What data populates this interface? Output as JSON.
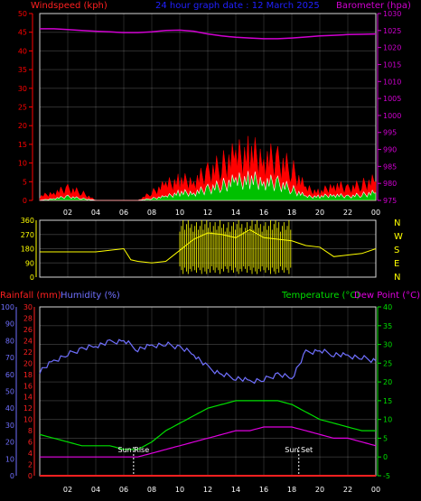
{
  "colors": {
    "wind": "#ff0000",
    "gust_fill": "#00c000",
    "gust_line": "#ffffff",
    "baro": "#d000d0",
    "dir": "#ffff00",
    "rain": "#ff2020",
    "humidity": "#7070ff",
    "temperature": "#00e000",
    "dewpoint": "#e000e0",
    "grid": "#ffffff",
    "frame": "#d0d0d0",
    "title": "#2020ff",
    "sunline": "#ffffff"
  },
  "x_ticks": [
    "02",
    "04",
    "06",
    "08",
    "10",
    "12",
    "14",
    "16",
    "18",
    "20",
    "22",
    "00"
  ],
  "chart_data": [
    {
      "type": "area",
      "id": "wind",
      "title": "24 hour graph date : 12 March 2025",
      "y_left_label": "Windspeed (kph)",
      "y_right_label": "Barometer (hpa)",
      "y_left_ticks": [
        "0",
        "5",
        "10",
        "15",
        "20",
        "25",
        "30",
        "35",
        "40",
        "45",
        "50"
      ],
      "y_right_ticks": [
        "975",
        "980",
        "985",
        "990",
        "995",
        "1000",
        "1005",
        "1010",
        "1015",
        "1020",
        "1025",
        "1030"
      ],
      "ylim_left": [
        0,
        50
      ],
      "ylim_right": [
        975,
        1030
      ],
      "x": [
        0,
        1,
        2,
        3,
        4,
        5,
        6,
        7,
        8,
        9,
        10,
        11,
        12,
        13,
        14,
        15,
        16,
        17,
        18,
        19,
        20,
        21,
        22,
        23,
        24
      ],
      "series": [
        {
          "values": [
            1,
            2,
            3,
            2,
            0,
            0,
            0,
            0,
            2,
            4,
            5,
            5,
            7,
            9,
            11,
            12,
            11,
            10,
            8,
            3,
            2,
            4,
            3,
            4,
            5
          ]
        },
        {
          "values": [
            0,
            0.5,
            1,
            0.5,
            0,
            0,
            0,
            0,
            0.5,
            1,
            2,
            2,
            3,
            4,
            5,
            5.5,
            5,
            4.5,
            3,
            1,
            1,
            1.5,
            1,
            1.5,
            2
          ]
        },
        {
          "values": [
            1025.5,
            1025.5,
            1025.3,
            1025,
            1024.8,
            1024.6,
            1024.4,
            1024.4,
            1024.6,
            1025,
            1025.1,
            1024.8,
            1024,
            1023.4,
            1023,
            1022.8,
            1022.6,
            1022.6,
            1022.8,
            1023.1,
            1023.4,
            1023.6,
            1023.8,
            1023.9,
            1024
          ]
        }
      ]
    },
    {
      "type": "line",
      "id": "direction",
      "y_left_ticks": [
        "0",
        "90",
        "180",
        "270",
        "360"
      ],
      "y_right_ticks": [
        "N",
        "E",
        "S",
        "W",
        "N"
      ],
      "ylim": [
        0,
        360
      ],
      "x": [
        0,
        1,
        2,
        3,
        4,
        5,
        6,
        6.5,
        7,
        8,
        9,
        10,
        11,
        12,
        13,
        14,
        15,
        16,
        17,
        18,
        19,
        20,
        21,
        22,
        23,
        24
      ],
      "values": [
        160,
        160,
        160,
        160,
        160,
        170,
        180,
        110,
        100,
        90,
        100,
        170,
        240,
        280,
        270,
        250,
        300,
        250,
        240,
        230,
        200,
        190,
        130,
        140,
        150,
        180
      ]
    },
    {
      "type": "line",
      "id": "temp",
      "y_left_labels": {
        "rainfall": "Rainfall (mm)",
        "humidity": "Humidity (%)"
      },
      "y_right_labels": {
        "temperature": "Temperature (°C)",
        "dewpoint": "Dew Point (°C)"
      },
      "rain_ticks": [
        "0",
        "2",
        "4",
        "6",
        "8",
        "10",
        "12",
        "14",
        "16",
        "18",
        "20",
        "22",
        "24",
        "26",
        "28",
        "30"
      ],
      "humidity_ticks": [
        "0",
        "10",
        "20",
        "30",
        "40",
        "50",
        "60",
        "70",
        "80",
        "90",
        "100"
      ],
      "temp_ticks": [
        "-5",
        "0",
        "5",
        "10",
        "15",
        "20",
        "25",
        "30",
        "35",
        "40"
      ],
      "ylim_temp": [
        -5,
        40
      ],
      "ylim_humidity": [
        0,
        100
      ],
      "x": [
        0,
        1,
        2,
        3,
        4,
        5,
        6,
        7,
        8,
        9,
        10,
        11,
        12,
        13,
        14,
        15,
        16,
        17,
        18,
        19,
        20,
        21,
        22,
        23,
        24
      ],
      "series": [
        {
          "name": "Humidity",
          "values": [
            62,
            68,
            72,
            75,
            77,
            79,
            80,
            75,
            77,
            78,
            76,
            72,
            64,
            60,
            58,
            56,
            57,
            60,
            58,
            73,
            74,
            72,
            71,
            70,
            68
          ]
        },
        {
          "name": "Temperature",
          "values": [
            6,
            5,
            4,
            3,
            3,
            3,
            2,
            2,
            4,
            7,
            9,
            11,
            13,
            14,
            15,
            15,
            15,
            15,
            14,
            12,
            10,
            9,
            8,
            7,
            7
          ]
        },
        {
          "name": "Dew Point",
          "values": [
            0,
            0,
            0,
            0,
            0,
            0,
            0,
            0,
            1,
            2,
            3,
            4,
            5,
            6,
            7,
            7,
            8,
            8,
            8,
            7,
            6,
            5,
            5,
            4,
            3
          ]
        },
        {
          "name": "Rainfall",
          "values": [
            0,
            0,
            0,
            0,
            0,
            0,
            0,
            0,
            0,
            0,
            0,
            0,
            0,
            0,
            0,
            0,
            0,
            0,
            0,
            0,
            0,
            0,
            0,
            0,
            0
          ]
        }
      ],
      "annotations": [
        {
          "label": "Sun Rise",
          "x": 6.7
        },
        {
          "label": "Sun Set",
          "x": 18.5
        }
      ]
    }
  ]
}
